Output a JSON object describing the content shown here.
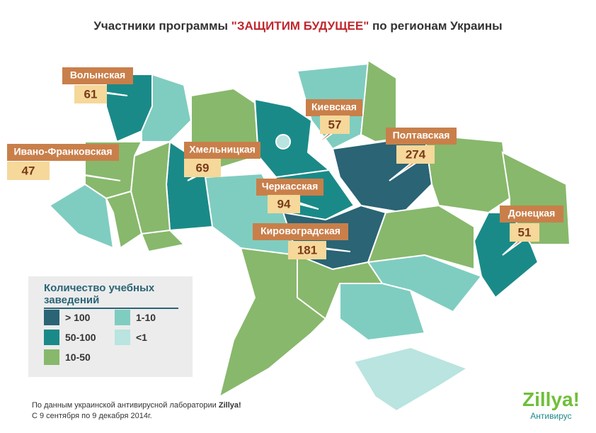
{
  "title": {
    "prefix": "Участники программы",
    "highlight": "\"ЗАЩИТИМ БУДУЩЕЕ\"",
    "suffix": "по регионам Украины"
  },
  "regions": [
    {
      "name": "Волынская",
      "value": 61
    },
    {
      "name": "Ивано-Франковская",
      "value": 47
    },
    {
      "name": "Хмельницкая",
      "value": 69
    },
    {
      "name": "Киевская",
      "value": 57
    },
    {
      "name": "Полтавская",
      "value": 274
    },
    {
      "name": "Черкасская",
      "value": 94
    },
    {
      "name": "Донецкая",
      "value": 51
    },
    {
      "name": "Кировоградская",
      "value": 181
    }
  ],
  "legend": {
    "title": "Количество учебных заведений",
    "items": [
      {
        "label": "> 100",
        "color": "#2a6475"
      },
      {
        "label": "1-10",
        "color": "#7fcdc0"
      },
      {
        "label": "50-100",
        "color": "#1a8a88"
      },
      {
        "label": "<1",
        "color": "#b9e4df"
      },
      {
        "label": "10-50",
        "color": "#88b86c"
      }
    ]
  },
  "footer": {
    "line1": "По данным украинской антивирусной лаборатории",
    "brand": "Zillya!",
    "line2": "С 9 сентября по 9 декабря 2014г."
  },
  "logo": {
    "name": "Zillya!",
    "sub": "Антивирус"
  }
}
